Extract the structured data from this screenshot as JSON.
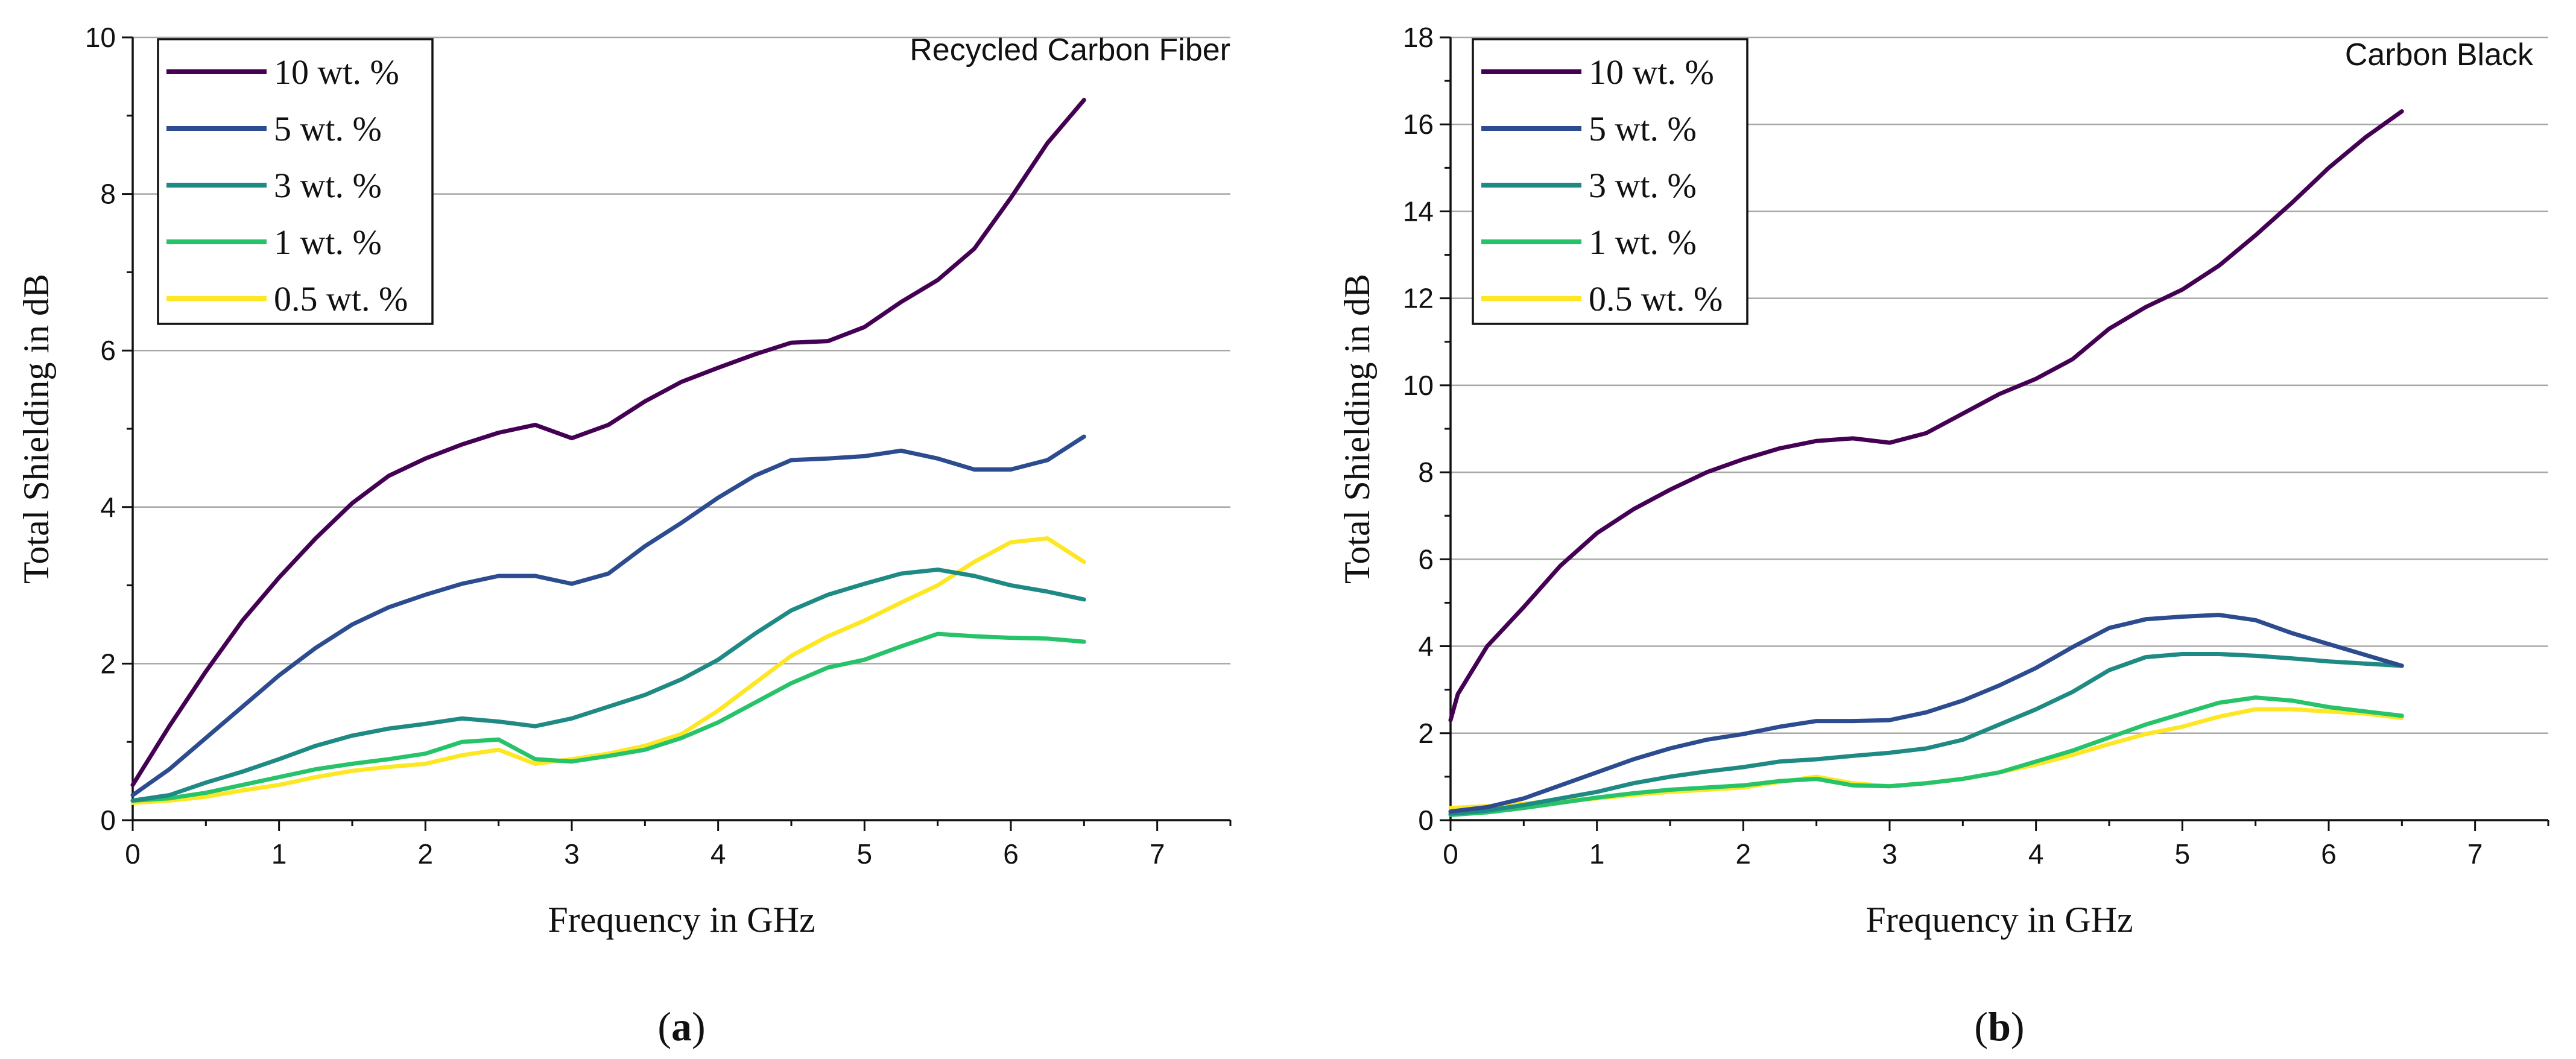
{
  "chart_data": [
    {
      "type": "line",
      "panel_label_open": "(",
      "panel_label_letter": "a",
      "panel_label_close": ")",
      "title": "Recycled Carbon Fiber",
      "xlabel": "Frequency in GHz",
      "ylabel": "Total Shielding in dB",
      "xlim": [
        0,
        7.5
      ],
      "ylim": [
        0,
        10
      ],
      "xticks": [
        0,
        1,
        2,
        3,
        4,
        5,
        6,
        7
      ],
      "yticks": [
        0,
        2,
        4,
        6,
        8,
        10
      ],
      "grid": "horizontal",
      "legend_position": "top-left",
      "series": [
        {
          "name": "10 wt. %",
          "color": "#440154",
          "x": [
            0,
            0.25,
            0.5,
            0.75,
            1.0,
            1.25,
            1.5,
            1.75,
            2.0,
            2.25,
            2.5,
            2.75,
            3.0,
            3.25,
            3.5,
            3.75,
            4.0,
            4.25,
            4.5,
            4.75,
            5.0,
            5.25,
            5.5,
            5.75,
            6.0,
            6.25,
            6.5
          ],
          "y": [
            0.45,
            1.2,
            1.9,
            2.55,
            3.1,
            3.6,
            4.05,
            4.4,
            4.62,
            4.8,
            4.95,
            5.05,
            4.88,
            5.05,
            5.35,
            5.6,
            5.78,
            5.95,
            6.1,
            6.12,
            6.3,
            6.62,
            6.9,
            7.3,
            7.95,
            8.65,
            9.2
          ]
        },
        {
          "name": "5 wt. %",
          "color": "#2c4c8f",
          "x": [
            0,
            0.25,
            0.5,
            0.75,
            1.0,
            1.25,
            1.5,
            1.75,
            2.0,
            2.25,
            2.5,
            2.75,
            3.0,
            3.25,
            3.5,
            3.75,
            4.0,
            4.25,
            4.5,
            4.75,
            5.0,
            5.25,
            5.5,
            5.75,
            6.0,
            6.25,
            6.5
          ],
          "y": [
            0.32,
            0.65,
            1.05,
            1.45,
            1.85,
            2.2,
            2.5,
            2.72,
            2.88,
            3.02,
            3.12,
            3.12,
            3.02,
            3.15,
            3.5,
            3.8,
            4.12,
            4.4,
            4.6,
            4.62,
            4.65,
            4.72,
            4.62,
            4.48,
            4.48,
            4.6,
            4.9
          ]
        },
        {
          "name": "3 wt. %",
          "color": "#1f8a84",
          "x": [
            0,
            0.25,
            0.5,
            0.75,
            1.0,
            1.25,
            1.5,
            1.75,
            2.0,
            2.25,
            2.5,
            2.75,
            3.0,
            3.25,
            3.5,
            3.75,
            4.0,
            4.25,
            4.5,
            4.75,
            5.0,
            5.25,
            5.5,
            5.75,
            6.0,
            6.25,
            6.5
          ],
          "y": [
            0.25,
            0.32,
            0.48,
            0.62,
            0.78,
            0.95,
            1.08,
            1.17,
            1.23,
            1.3,
            1.26,
            1.2,
            1.3,
            1.45,
            1.6,
            1.8,
            2.05,
            2.38,
            2.68,
            2.88,
            3.02,
            3.15,
            3.2,
            3.12,
            3.0,
            2.92,
            2.82
          ]
        },
        {
          "name": "1 wt. %",
          "color": "#27c36a",
          "x": [
            0,
            0.25,
            0.5,
            0.75,
            1.0,
            1.25,
            1.5,
            1.75,
            2.0,
            2.25,
            2.5,
            2.75,
            3.0,
            3.25,
            3.5,
            3.75,
            4.0,
            4.25,
            4.5,
            4.75,
            5.0,
            5.25,
            5.5,
            5.75,
            6.0,
            6.25,
            6.5
          ],
          "y": [
            0.25,
            0.28,
            0.35,
            0.45,
            0.55,
            0.65,
            0.72,
            0.78,
            0.85,
            1.0,
            1.03,
            0.78,
            0.75,
            0.82,
            0.9,
            1.05,
            1.25,
            1.5,
            1.75,
            1.95,
            2.05,
            2.22,
            2.38,
            2.35,
            2.33,
            2.32,
            2.28
          ]
        },
        {
          "name": "0.5 wt. %",
          "color": "#fde725",
          "x": [
            0,
            0.25,
            0.5,
            0.75,
            1.0,
            1.25,
            1.5,
            1.75,
            2.0,
            2.25,
            2.5,
            2.75,
            3.0,
            3.25,
            3.5,
            3.75,
            4.0,
            4.25,
            4.5,
            4.75,
            5.0,
            5.25,
            5.5,
            5.75,
            6.0,
            6.25,
            6.5
          ],
          "y": [
            0.22,
            0.25,
            0.3,
            0.38,
            0.45,
            0.55,
            0.63,
            0.68,
            0.72,
            0.83,
            0.9,
            0.72,
            0.78,
            0.85,
            0.95,
            1.1,
            1.4,
            1.75,
            2.1,
            2.35,
            2.55,
            2.78,
            3.0,
            3.3,
            3.55,
            3.6,
            3.3
          ]
        }
      ]
    },
    {
      "type": "line",
      "panel_label_open": "(",
      "panel_label_letter": "b",
      "panel_label_close": ")",
      "title": "Carbon Black",
      "xlabel": "Frequency in GHz",
      "ylabel": "Total Shielding in dB",
      "xlim": [
        0,
        7.5
      ],
      "ylim": [
        0,
        18
      ],
      "xticks": [
        0,
        1,
        2,
        3,
        4,
        5,
        6,
        7
      ],
      "yticks": [
        0,
        2,
        4,
        6,
        8,
        10,
        12,
        14,
        16,
        18
      ],
      "grid": "horizontal",
      "legend_position": "top-left",
      "series": [
        {
          "name": "10 wt. %",
          "color": "#440154",
          "x": [
            0,
            0.05,
            0.25,
            0.5,
            0.75,
            1.0,
            1.25,
            1.5,
            1.75,
            2.0,
            2.25,
            2.5,
            2.75,
            3.0,
            3.25,
            3.5,
            3.75,
            4.0,
            4.25,
            4.5,
            4.75,
            5.0,
            5.25,
            5.5,
            5.75,
            6.0,
            6.25,
            6.5
          ],
          "y": [
            2.3,
            2.9,
            4.0,
            4.9,
            5.85,
            6.6,
            7.15,
            7.6,
            8.0,
            8.3,
            8.55,
            8.72,
            8.78,
            8.68,
            8.9,
            9.35,
            9.8,
            10.15,
            10.6,
            11.3,
            11.8,
            12.2,
            12.75,
            13.45,
            14.2,
            15.0,
            15.7,
            16.3
          ]
        },
        {
          "name": "5 wt. %",
          "color": "#2c4c8f",
          "x": [
            0,
            0.25,
            0.5,
            0.75,
            1.0,
            1.25,
            1.5,
            1.75,
            2.0,
            2.25,
            2.5,
            2.75,
            3.0,
            3.25,
            3.5,
            3.75,
            4.0,
            4.25,
            4.5,
            4.75,
            5.0,
            5.25,
            5.5,
            5.75,
            6.0,
            6.25,
            6.5
          ],
          "y": [
            0.2,
            0.3,
            0.5,
            0.8,
            1.1,
            1.4,
            1.65,
            1.85,
            1.98,
            2.15,
            2.28,
            2.28,
            2.3,
            2.48,
            2.75,
            3.1,
            3.5,
            3.98,
            4.42,
            4.62,
            4.68,
            4.72,
            4.6,
            4.3,
            4.05,
            3.8,
            3.55
          ]
        },
        {
          "name": "3 wt. %",
          "color": "#1f8a84",
          "x": [
            0,
            0.25,
            0.5,
            0.75,
            1.0,
            1.25,
            1.5,
            1.75,
            2.0,
            2.25,
            2.5,
            2.75,
            3.0,
            3.25,
            3.5,
            3.75,
            4.0,
            4.25,
            4.5,
            4.75,
            5.0,
            5.25,
            5.5,
            5.75,
            6.0,
            6.25,
            6.5
          ],
          "y": [
            0.15,
            0.22,
            0.35,
            0.5,
            0.65,
            0.85,
            1.0,
            1.12,
            1.22,
            1.35,
            1.4,
            1.48,
            1.55,
            1.65,
            1.85,
            2.2,
            2.55,
            2.95,
            3.45,
            3.75,
            3.82,
            3.82,
            3.78,
            3.72,
            3.65,
            3.6,
            3.55
          ]
        },
        {
          "name": "1 wt. %",
          "color": "#27c36a",
          "x": [
            0,
            0.25,
            0.5,
            0.75,
            1.0,
            1.25,
            1.5,
            1.75,
            2.0,
            2.25,
            2.5,
            2.75,
            3.0,
            3.25,
            3.5,
            3.75,
            4.0,
            4.25,
            4.5,
            4.75,
            5.0,
            5.25,
            5.5,
            5.75,
            6.0,
            6.25,
            6.5
          ],
          "y": [
            0.12,
            0.18,
            0.28,
            0.4,
            0.52,
            0.62,
            0.7,
            0.75,
            0.8,
            0.9,
            0.95,
            0.8,
            0.78,
            0.85,
            0.95,
            1.1,
            1.35,
            1.6,
            1.9,
            2.2,
            2.45,
            2.7,
            2.82,
            2.75,
            2.6,
            2.5,
            2.4
          ]
        },
        {
          "name": "0.5 wt. %",
          "color": "#fde725",
          "x": [
            0,
            0.25,
            0.5,
            0.75,
            1.0,
            1.25,
            1.5,
            1.75,
            2.0,
            2.25,
            2.5,
            2.75,
            3.0,
            3.25,
            3.5,
            3.75,
            4.0,
            4.25,
            4.5,
            4.75,
            5.0,
            5.25,
            5.5,
            5.75,
            6.0,
            6.25,
            6.5
          ],
          "y": [
            0.28,
            0.32,
            0.38,
            0.45,
            0.5,
            0.58,
            0.65,
            0.7,
            0.75,
            0.88,
            1.0,
            0.85,
            0.78,
            0.85,
            0.95,
            1.1,
            1.28,
            1.5,
            1.75,
            1.98,
            2.15,
            2.38,
            2.55,
            2.55,
            2.5,
            2.45,
            2.35
          ]
        }
      ]
    }
  ]
}
